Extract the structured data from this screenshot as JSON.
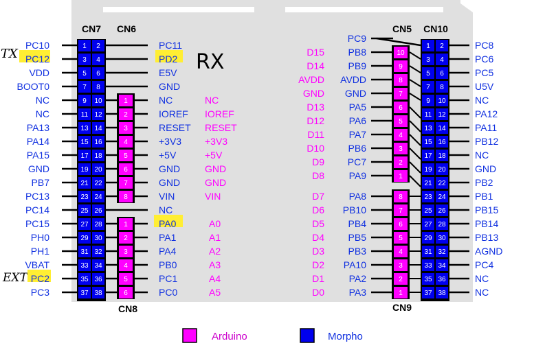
{
  "connectors": {
    "cn7": "CN7",
    "cn6": "CN6",
    "cn8": "CN8",
    "cn5": "CN5",
    "cn10": "CN10",
    "cn9": "CN9"
  },
  "colors": {
    "arduino": "#ff00ff",
    "morpho": "#0000ee",
    "label": "#1030e0",
    "highlight": "#ffee33",
    "board": "#e0e0e0"
  },
  "cn7_left": [
    "PC10",
    "PC12",
    "VDD",
    "BOOT0",
    "NC",
    "NC",
    "PA13",
    "PA14",
    "PA15",
    "GND",
    "PB7",
    "PC13",
    "PC14",
    "PC15",
    "PH0",
    "PH1",
    "VBAT",
    "PC2",
    "PC3"
  ],
  "cn7_inner": [
    "PC11",
    "PD2",
    "E5V",
    "GND",
    "NC",
    "IOREF",
    "RESET",
    "+3V3",
    "+5V",
    "GND",
    "GND",
    "VIN",
    "NC",
    "PA0",
    "PA1",
    "PA4",
    "PB0",
    "PC1",
    "PC0"
  ],
  "cn6_arduino": [
    "NC",
    "IOREF",
    "RESET",
    "+3V3",
    "+5V",
    "GND",
    "GND",
    "VIN"
  ],
  "cn8_arduino": [
    "A0",
    "A1",
    "A2",
    "A3",
    "A4",
    "A5"
  ],
  "cn10_right": [
    "PC8",
    "PC6",
    "PC5",
    "U5V",
    "NC",
    "PA12",
    "PA11",
    "PB12",
    "NC",
    "GND",
    "PB2",
    "PB1",
    "PB15",
    "PB14",
    "PB13",
    "AGND",
    "PC4",
    "NC",
    "NC"
  ],
  "cn10_inner": [
    "PC9",
    "PB8",
    "PB9",
    "AVDD",
    "GND",
    "PA5",
    "PA6",
    "PA7",
    "PB6",
    "PC7",
    "PA9",
    "",
    "PA8",
    "PB10",
    "PB4",
    "PB5",
    "PB3",
    "PA10",
    "PA2",
    "PA3"
  ],
  "cn5_arduino": [
    "D15",
    "D14",
    "AVDD",
    "GND",
    "D13",
    "D12",
    "D11",
    "D10",
    "D9",
    "D8"
  ],
  "cn9_arduino": [
    "D7",
    "D6",
    "D5",
    "D4",
    "D3",
    "D2",
    "D1",
    "D0"
  ],
  "annotations": {
    "tx": "TX",
    "rx": "RX",
    "ext": "EXT"
  },
  "legend": {
    "arduino": "Arduino",
    "morpho": "Morpho"
  }
}
